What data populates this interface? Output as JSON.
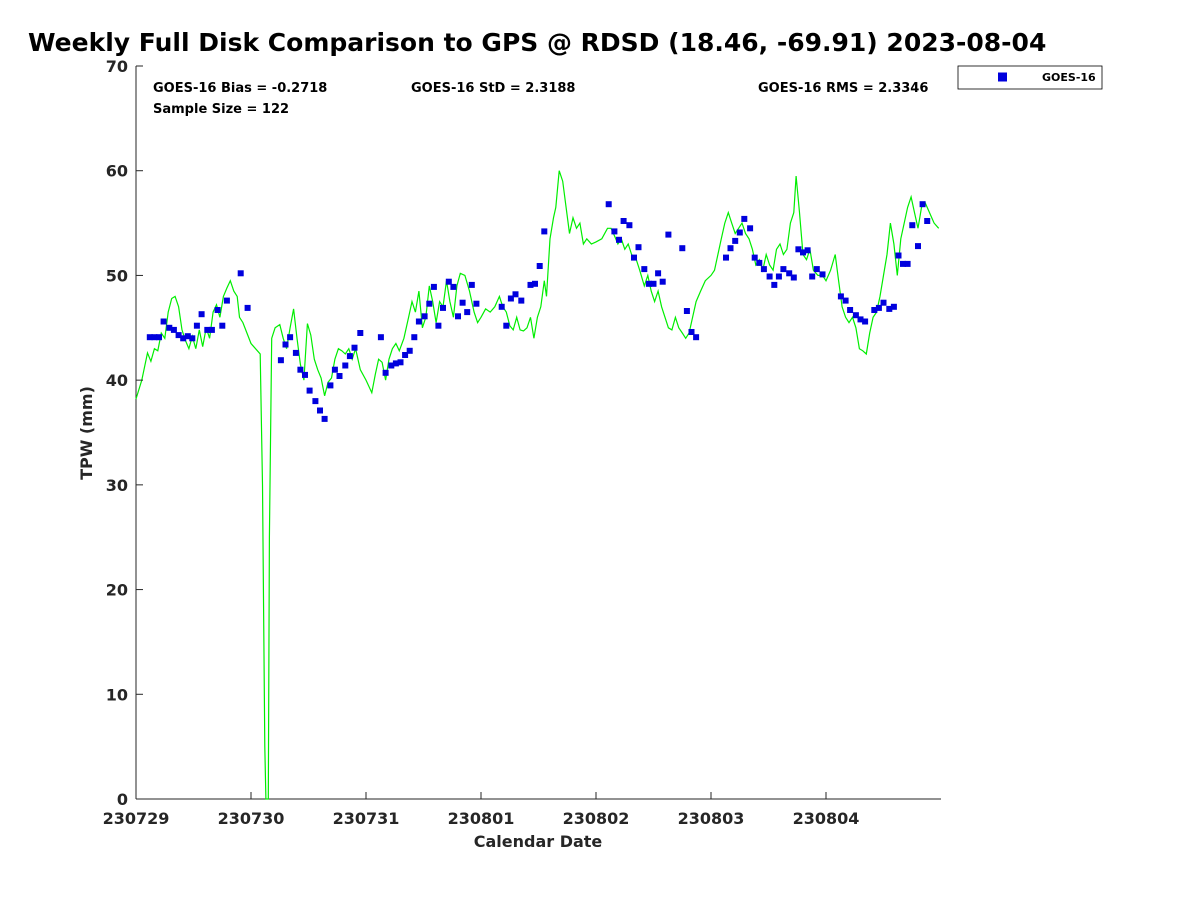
{
  "title": "Weekly Full Disk Comparison to GPS @ RDSD (18.46, -69.91) 2023-08-04",
  "stats": {
    "bias": "GOES-16 Bias = -0.2718",
    "std": "GOES-16 StD = 2.3188",
    "rms": "GOES-16 RMS = 2.3346",
    "sample": "Sample Size = 122"
  },
  "colors": {
    "gps_line": "#00ee00",
    "goes_marker": "#0000dd"
  },
  "chart_data": {
    "type": "scatter",
    "xlabel": "Calendar Date",
    "ylabel": "TPW (mm)",
    "xlim": [
      0,
      7
    ],
    "ylim": [
      0,
      70
    ],
    "yticks": [
      0,
      10,
      20,
      30,
      40,
      50,
      60,
      70
    ],
    "xticks": [
      0,
      1,
      2,
      3,
      4,
      5,
      6
    ],
    "xtick_labels": [
      "230729",
      "230730",
      "230731",
      "230801",
      "230802",
      "230803",
      "230804"
    ],
    "legend": {
      "position": "outside-top-right",
      "entries": [
        "GOES-16"
      ]
    },
    "gps_line": [
      [
        0.0,
        38.2
      ],
      [
        0.05,
        40.0
      ],
      [
        0.1,
        42.6
      ],
      [
        0.13,
        41.8
      ],
      [
        0.16,
        43.0
      ],
      [
        0.19,
        42.8
      ],
      [
        0.22,
        44.5
      ],
      [
        0.25,
        44.0
      ],
      [
        0.28,
        46.5
      ],
      [
        0.31,
        47.8
      ],
      [
        0.34,
        48.0
      ],
      [
        0.37,
        47.0
      ],
      [
        0.4,
        44.8
      ],
      [
        0.43,
        43.8
      ],
      [
        0.46,
        43.0
      ],
      [
        0.49,
        44.2
      ],
      [
        0.52,
        43.0
      ],
      [
        0.55,
        44.8
      ],
      [
        0.58,
        43.2
      ],
      [
        0.61,
        45.0
      ],
      [
        0.64,
        44.0
      ],
      [
        0.67,
        46.5
      ],
      [
        0.7,
        47.2
      ],
      [
        0.73,
        46.0
      ],
      [
        0.76,
        48.0
      ],
      [
        0.79,
        48.8
      ],
      [
        0.82,
        49.5
      ],
      [
        0.85,
        48.5
      ],
      [
        0.88,
        48.0
      ],
      [
        0.9,
        46.0
      ],
      [
        0.93,
        45.5
      ],
      [
        1.0,
        43.5
      ],
      [
        1.08,
        42.5
      ],
      [
        1.1,
        30.0
      ],
      [
        1.12,
        5.0
      ],
      [
        1.13,
        0.0
      ],
      [
        1.15,
        0.0
      ],
      [
        1.16,
        25.0
      ],
      [
        1.18,
        44.0
      ],
      [
        1.21,
        45.0
      ],
      [
        1.25,
        45.3
      ],
      [
        1.28,
        44.0
      ],
      [
        1.31,
        43.0
      ],
      [
        1.34,
        45.0
      ],
      [
        1.37,
        46.8
      ],
      [
        1.4,
        44.0
      ],
      [
        1.43,
        41.5
      ],
      [
        1.46,
        40.0
      ],
      [
        1.49,
        45.4
      ],
      [
        1.52,
        44.3
      ],
      [
        1.55,
        42.0
      ],
      [
        1.58,
        41.0
      ],
      [
        1.61,
        40.2
      ],
      [
        1.64,
        38.5
      ],
      [
        1.67,
        39.8
      ],
      [
        1.7,
        40.2
      ],
      [
        1.73,
        42.0
      ],
      [
        1.76,
        43.0
      ],
      [
        1.79,
        42.8
      ],
      [
        1.82,
        42.5
      ],
      [
        1.85,
        43.0
      ],
      [
        1.88,
        42.0
      ],
      [
        1.91,
        43.0
      ],
      [
        1.95,
        41.0
      ],
      [
        2.0,
        40.0
      ],
      [
        2.05,
        38.8
      ],
      [
        2.08,
        40.5
      ],
      [
        2.11,
        42.0
      ],
      [
        2.14,
        41.7
      ],
      [
        2.17,
        40.0
      ],
      [
        2.2,
        42.0
      ],
      [
        2.23,
        43.0
      ],
      [
        2.26,
        43.5
      ],
      [
        2.29,
        42.8
      ],
      [
        2.33,
        44.0
      ],
      [
        2.37,
        46.0
      ],
      [
        2.4,
        47.5
      ],
      [
        2.43,
        46.5
      ],
      [
        2.46,
        48.5
      ],
      [
        2.49,
        45.0
      ],
      [
        2.52,
        46.0
      ],
      [
        2.55,
        49.0
      ],
      [
        2.58,
        47.5
      ],
      [
        2.61,
        45.5
      ],
      [
        2.64,
        47.5
      ],
      [
        2.67,
        47.0
      ],
      [
        2.7,
        49.5
      ],
      [
        2.73,
        47.5
      ],
      [
        2.76,
        46.0
      ],
      [
        2.79,
        49.0
      ],
      [
        2.82,
        50.2
      ],
      [
        2.86,
        50.0
      ],
      [
        2.9,
        48.5
      ],
      [
        2.94,
        46.5
      ],
      [
        2.97,
        45.5
      ],
      [
        3.0,
        46.0
      ],
      [
        3.04,
        46.8
      ],
      [
        3.08,
        46.5
      ],
      [
        3.12,
        47.0
      ],
      [
        3.16,
        48.0
      ],
      [
        3.19,
        47.0
      ],
      [
        3.22,
        46.5
      ],
      [
        3.25,
        45.2
      ],
      [
        3.28,
        44.8
      ],
      [
        3.31,
        46.0
      ],
      [
        3.34,
        44.8
      ],
      [
        3.37,
        44.7
      ],
      [
        3.4,
        45.0
      ],
      [
        3.43,
        46.0
      ],
      [
        3.46,
        44.0
      ],
      [
        3.49,
        46.0
      ],
      [
        3.52,
        47.0
      ],
      [
        3.55,
        49.5
      ],
      [
        3.57,
        48.0
      ],
      [
        3.6,
        53.5
      ],
      [
        3.63,
        55.5
      ],
      [
        3.65,
        56.5
      ],
      [
        3.68,
        60.0
      ],
      [
        3.71,
        59.0
      ],
      [
        3.74,
        56.5
      ],
      [
        3.77,
        54.0
      ],
      [
        3.8,
        55.5
      ],
      [
        3.83,
        54.5
      ],
      [
        3.86,
        55.0
      ],
      [
        3.89,
        53.0
      ],
      [
        3.92,
        53.5
      ],
      [
        3.96,
        53.0
      ],
      [
        4.0,
        53.2
      ],
      [
        4.05,
        53.5
      ],
      [
        4.1,
        54.5
      ],
      [
        4.13,
        54.5
      ],
      [
        4.16,
        53.8
      ],
      [
        4.19,
        53.0
      ],
      [
        4.22,
        53.5
      ],
      [
        4.25,
        52.5
      ],
      [
        4.28,
        53.0
      ],
      [
        4.31,
        52.0
      ],
      [
        4.35,
        51.5
      ],
      [
        4.38,
        50.5
      ],
      [
        4.42,
        49.0
      ],
      [
        4.45,
        50.0
      ],
      [
        4.48,
        48.5
      ],
      [
        4.51,
        47.5
      ],
      [
        4.54,
        48.5
      ],
      [
        4.57,
        47.0
      ],
      [
        4.6,
        46.0
      ],
      [
        4.63,
        45.0
      ],
      [
        4.66,
        44.8
      ],
      [
        4.69,
        46.0
      ],
      [
        4.72,
        45.0
      ],
      [
        4.75,
        44.5
      ],
      [
        4.78,
        44.0
      ],
      [
        4.81,
        44.5
      ],
      [
        4.84,
        46.0
      ],
      [
        4.87,
        47.5
      ],
      [
        4.91,
        48.5
      ],
      [
        4.95,
        49.5
      ],
      [
        5.0,
        50.0
      ],
      [
        5.03,
        50.5
      ],
      [
        5.06,
        52.0
      ],
      [
        5.09,
        53.5
      ],
      [
        5.12,
        55.0
      ],
      [
        5.15,
        56.0
      ],
      [
        5.18,
        55.0
      ],
      [
        5.21,
        54.0
      ],
      [
        5.24,
        54.5
      ],
      [
        5.27,
        55.0
      ],
      [
        5.3,
        54.0
      ],
      [
        5.33,
        53.5
      ],
      [
        5.36,
        52.5
      ],
      [
        5.39,
        51.0
      ],
      [
        5.42,
        51.5
      ],
      [
        5.45,
        50.5
      ],
      [
        5.48,
        52.0
      ],
      [
        5.51,
        51.0
      ],
      [
        5.54,
        50.5
      ],
      [
        5.57,
        52.5
      ],
      [
        5.6,
        53.0
      ],
      [
        5.63,
        52.0
      ],
      [
        5.66,
        52.5
      ],
      [
        5.69,
        55.0
      ],
      [
        5.72,
        56.0
      ],
      [
        5.74,
        59.5
      ],
      [
        5.77,
        56.0
      ],
      [
        5.8,
        52.0
      ],
      [
        5.83,
        51.5
      ],
      [
        5.86,
        52.5
      ],
      [
        5.89,
        50.5
      ],
      [
        5.93,
        50.0
      ],
      [
        5.97,
        50.0
      ],
      [
        6.0,
        49.5
      ],
      [
        6.04,
        50.5
      ],
      [
        6.08,
        52.0
      ],
      [
        6.11,
        49.5
      ],
      [
        6.14,
        47.0
      ],
      [
        6.17,
        46.0
      ],
      [
        6.2,
        45.5
      ],
      [
        6.23,
        46.0
      ],
      [
        6.26,
        45.0
      ],
      [
        6.29,
        43.0
      ],
      [
        6.32,
        42.8
      ],
      [
        6.35,
        42.5
      ],
      [
        6.38,
        44.5
      ],
      [
        6.41,
        46.0
      ],
      [
        6.44,
        46.5
      ],
      [
        6.47,
        48.0
      ],
      [
        6.5,
        50.0
      ],
      [
        6.53,
        52.0
      ],
      [
        6.56,
        55.0
      ],
      [
        6.59,
        53.0
      ],
      [
        6.62,
        50.0
      ],
      [
        6.65,
        53.5
      ],
      [
        6.68,
        55.0
      ],
      [
        6.71,
        56.5
      ],
      [
        6.74,
        57.5
      ],
      [
        6.77,
        56.0
      ],
      [
        6.8,
        54.5
      ],
      [
        6.83,
        56.5
      ],
      [
        6.86,
        57.0
      ],
      [
        6.9,
        56.0
      ],
      [
        6.94,
        55.0
      ],
      [
        6.98,
        54.5
      ]
    ],
    "goes16_points": [
      [
        0.12,
        44.1
      ],
      [
        0.16,
        44.1
      ],
      [
        0.2,
        44.1
      ],
      [
        0.24,
        45.6
      ],
      [
        0.29,
        45.0
      ],
      [
        0.33,
        44.8
      ],
      [
        0.37,
        44.3
      ],
      [
        0.41,
        44.0
      ],
      [
        0.45,
        44.2
      ],
      [
        0.49,
        44.0
      ],
      [
        0.53,
        45.2
      ],
      [
        0.57,
        46.3
      ],
      [
        0.62,
        44.8
      ],
      [
        0.66,
        44.8
      ],
      [
        0.71,
        46.7
      ],
      [
        0.75,
        45.2
      ],
      [
        0.79,
        47.6
      ],
      [
        0.91,
        50.2
      ],
      [
        0.97,
        46.9
      ],
      [
        1.26,
        41.9
      ],
      [
        1.3,
        43.4
      ],
      [
        1.34,
        44.1
      ],
      [
        1.39,
        42.6
      ],
      [
        1.43,
        41.0
      ],
      [
        1.47,
        40.5
      ],
      [
        1.51,
        39.0
      ],
      [
        1.56,
        38.0
      ],
      [
        1.6,
        37.1
      ],
      [
        1.64,
        36.3
      ],
      [
        1.69,
        39.5
      ],
      [
        1.73,
        41.0
      ],
      [
        1.77,
        40.4
      ],
      [
        1.82,
        41.4
      ],
      [
        1.86,
        42.3
      ],
      [
        1.9,
        43.1
      ],
      [
        1.95,
        44.5
      ],
      [
        2.13,
        44.1
      ],
      [
        2.17,
        40.7
      ],
      [
        2.22,
        41.4
      ],
      [
        2.26,
        41.6
      ],
      [
        2.3,
        41.7
      ],
      [
        2.34,
        42.4
      ],
      [
        2.38,
        42.8
      ],
      [
        2.42,
        44.1
      ],
      [
        2.46,
        45.6
      ],
      [
        2.51,
        46.1
      ],
      [
        2.55,
        47.3
      ],
      [
        2.59,
        48.9
      ],
      [
        2.63,
        45.2
      ],
      [
        2.67,
        46.9
      ],
      [
        2.72,
        49.4
      ],
      [
        2.76,
        48.9
      ],
      [
        2.8,
        46.1
      ],
      [
        2.84,
        47.4
      ],
      [
        2.88,
        46.5
      ],
      [
        2.92,
        49.1
      ],
      [
        2.96,
        47.3
      ],
      [
        3.18,
        47.0
      ],
      [
        3.22,
        45.2
      ],
      [
        3.26,
        47.8
      ],
      [
        3.3,
        48.2
      ],
      [
        3.35,
        47.6
      ],
      [
        3.43,
        49.1
      ],
      [
        3.47,
        49.2
      ],
      [
        3.51,
        50.9
      ],
      [
        3.55,
        54.2
      ],
      [
        4.11,
        56.8
      ],
      [
        4.16,
        54.2
      ],
      [
        4.2,
        53.4
      ],
      [
        4.24,
        55.2
      ],
      [
        4.29,
        54.8
      ],
      [
        4.33,
        51.7
      ],
      [
        4.37,
        52.7
      ],
      [
        4.42,
        50.6
      ],
      [
        4.46,
        49.2
      ],
      [
        4.5,
        49.2
      ],
      [
        4.54,
        50.2
      ],
      [
        4.58,
        49.4
      ],
      [
        4.63,
        53.9
      ],
      [
        4.75,
        52.6
      ],
      [
        4.79,
        46.6
      ],
      [
        4.83,
        44.6
      ],
      [
        4.87,
        44.1
      ],
      [
        5.13,
        51.7
      ],
      [
        5.17,
        52.6
      ],
      [
        5.21,
        53.3
      ],
      [
        5.25,
        54.1
      ],
      [
        5.29,
        55.4
      ],
      [
        5.34,
        54.5
      ],
      [
        5.38,
        51.7
      ],
      [
        5.42,
        51.2
      ],
      [
        5.46,
        50.6
      ],
      [
        5.51,
        49.9
      ],
      [
        5.55,
        49.1
      ],
      [
        5.59,
        49.9
      ],
      [
        5.63,
        50.6
      ],
      [
        5.68,
        50.2
      ],
      [
        5.72,
        49.8
      ],
      [
        5.76,
        52.5
      ],
      [
        5.8,
        52.2
      ],
      [
        5.84,
        52.4
      ],
      [
        5.88,
        49.9
      ],
      [
        5.92,
        50.6
      ],
      [
        5.97,
        50.1
      ],
      [
        6.13,
        48.0
      ],
      [
        6.17,
        47.6
      ],
      [
        6.21,
        46.7
      ],
      [
        6.26,
        46.2
      ],
      [
        6.3,
        45.8
      ],
      [
        6.34,
        45.6
      ],
      [
        6.42,
        46.7
      ],
      [
        6.46,
        46.9
      ],
      [
        6.5,
        47.4
      ],
      [
        6.55,
        46.8
      ],
      [
        6.59,
        47.0
      ],
      [
        6.63,
        51.9
      ],
      [
        6.67,
        51.1
      ],
      [
        6.71,
        51.1
      ],
      [
        6.75,
        54.8
      ],
      [
        6.8,
        52.8
      ],
      [
        6.84,
        56.8
      ],
      [
        6.88,
        55.2
      ]
    ]
  }
}
